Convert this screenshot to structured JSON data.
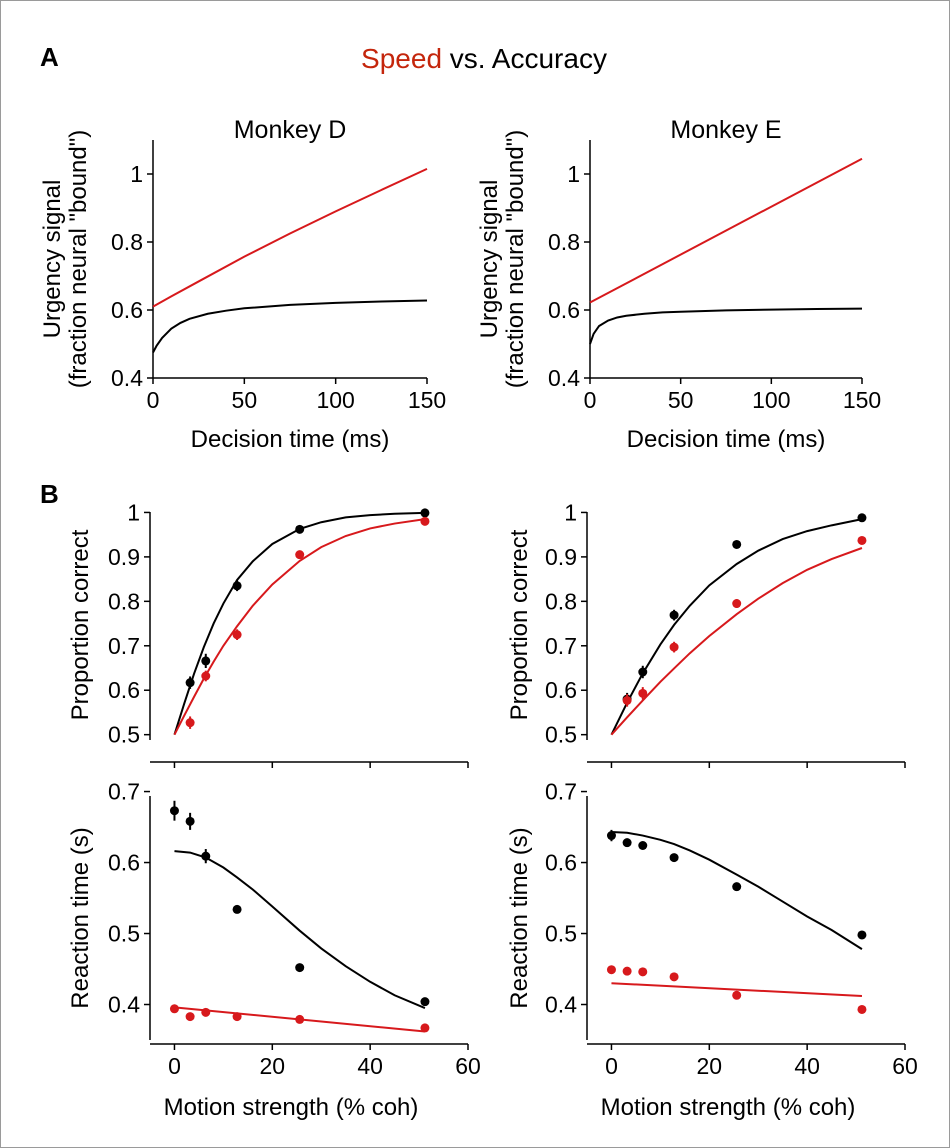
{
  "figure": {
    "panel_a_letter": "A",
    "panel_b_letter": "B",
    "title_speed": "Speed",
    "title_rest": " vs. Accuracy",
    "colors": {
      "speed": "#d7191c",
      "accuracy": "#000000",
      "title_speed": "#c4260c"
    }
  },
  "chart_data": [
    {
      "id": "urgency_D",
      "type": "line",
      "title": "Monkey D",
      "xlabel": "Decision time (ms)",
      "ylabel": [
        "Urgency signal",
        "(fraction neural \"bound\")"
      ],
      "xlim": [
        0,
        150
      ],
      "ylim": [
        0.4,
        1.1
      ],
      "xticks": [
        0,
        50,
        100,
        150
      ],
      "xtick_labels": [
        "0",
        "50",
        "100",
        "150"
      ],
      "yticks": [
        0.4,
        0.6,
        0.8,
        1
      ],
      "ytick_labels": [
        "0.4",
        "0.6",
        "0.8",
        "1"
      ],
      "series": [
        {
          "key": "speed",
          "color": "#d7191c",
          "x": [
            0,
            10,
            25,
            50,
            75,
            100,
            125,
            150
          ],
          "y": [
            0.61,
            0.64,
            0.684,
            0.757,
            0.825,
            0.89,
            0.953,
            1.015
          ]
        },
        {
          "key": "accuracy",
          "color": "#000000",
          "x": [
            0,
            2,
            5,
            10,
            15,
            20,
            30,
            40,
            50,
            75,
            100,
            125,
            150
          ],
          "y": [
            0.475,
            0.495,
            0.518,
            0.545,
            0.562,
            0.574,
            0.589,
            0.598,
            0.605,
            0.615,
            0.621,
            0.625,
            0.628
          ]
        }
      ]
    },
    {
      "id": "urgency_E",
      "type": "line",
      "title": "Monkey E",
      "xlabel": "Decision time (ms)",
      "ylabel": [
        "Urgency signal",
        "(fraction neural \"bound\")"
      ],
      "xlim": [
        0,
        150
      ],
      "ylim": [
        0.4,
        1.1
      ],
      "xticks": [
        0,
        50,
        100,
        150
      ],
      "xtick_labels": [
        "0",
        "50",
        "100",
        "150"
      ],
      "yticks": [
        0.4,
        0.6,
        0.8,
        1
      ],
      "ytick_labels": [
        "0.4",
        "0.6",
        "0.8",
        "1"
      ],
      "series": [
        {
          "key": "speed",
          "color": "#d7191c",
          "x": [
            0,
            150
          ],
          "y": [
            0.622,
            1.045
          ]
        },
        {
          "key": "accuracy",
          "color": "#000000",
          "x": [
            0,
            2,
            5,
            10,
            15,
            20,
            30,
            40,
            50,
            75,
            100,
            125,
            150
          ],
          "y": [
            0.5,
            0.53,
            0.553,
            0.569,
            0.578,
            0.583,
            0.589,
            0.593,
            0.595,
            0.599,
            0.601,
            0.603,
            0.604
          ]
        }
      ]
    },
    {
      "id": "accuracy_D",
      "type": "scatter",
      "xlabel": "",
      "ylabel": [
        "Proportion correct"
      ],
      "xlim": [
        -5,
        60
      ],
      "ylim": [
        0.47,
        1.01
      ],
      "xticks": [
        0,
        20,
        40,
        60
      ],
      "xtick_labels": [],
      "yticks": [
        0.5,
        0.6,
        0.7,
        0.8,
        0.9,
        1
      ],
      "ytick_labels": [
        "0.5",
        "0.6",
        "0.7",
        "0.8",
        "0.9",
        "1"
      ],
      "series": [
        {
          "key": "accuracy",
          "color": "#000000",
          "x": [
            3.2,
            6.4,
            12.8,
            25.6,
            51.2
          ],
          "y": [
            0.617,
            0.666,
            0.835,
            0.962,
            0.999
          ],
          "err": [
            0.014,
            0.016,
            0.012,
            0.006,
            0.003
          ],
          "fit_x": [
            0,
            2,
            4,
            6,
            8,
            10,
            12.8,
            16,
            20,
            25.6,
            30,
            35,
            40,
            45,
            51.2
          ],
          "fit_y": [
            0.5,
            0.57,
            0.637,
            0.697,
            0.75,
            0.795,
            0.848,
            0.89,
            0.929,
            0.963,
            0.978,
            0.989,
            0.994,
            0.997,
            0.999
          ]
        },
        {
          "key": "speed",
          "color": "#d7191c",
          "x": [
            3.2,
            6.4,
            12.8,
            25.6,
            51.2
          ],
          "y": [
            0.527,
            0.632,
            0.725,
            0.905,
            0.98
          ],
          "err": [
            0.014,
            0.012,
            0.012,
            0.008,
            0.003
          ],
          "fit_x": [
            0,
            2,
            4,
            6,
            8,
            10,
            12.8,
            16,
            20,
            25.6,
            30,
            35,
            40,
            45,
            51.2
          ],
          "fit_y": [
            0.5,
            0.543,
            0.585,
            0.626,
            0.664,
            0.7,
            0.744,
            0.79,
            0.838,
            0.891,
            0.922,
            0.947,
            0.964,
            0.975,
            0.985
          ]
        }
      ]
    },
    {
      "id": "accuracy_E",
      "type": "scatter",
      "xlabel": "",
      "ylabel": [
        "Proportion correct"
      ],
      "xlim": [
        -5,
        60
      ],
      "ylim": [
        0.47,
        1.01
      ],
      "xticks": [
        0,
        20,
        40,
        60
      ],
      "xtick_labels": [],
      "yticks": [
        0.5,
        0.6,
        0.7,
        0.8,
        0.9,
        1
      ],
      "ytick_labels": [
        "0.5",
        "0.6",
        "0.7",
        "0.8",
        "0.9",
        "1"
      ],
      "series": [
        {
          "key": "accuracy",
          "color": "#000000",
          "x": [
            3.2,
            6.4,
            12.8,
            25.6,
            51.2
          ],
          "y": [
            0.58,
            0.641,
            0.769,
            0.928,
            0.988
          ],
          "err": [
            0.014,
            0.014,
            0.012,
            0.005,
            0.003
          ],
          "fit_x": [
            0,
            3.2,
            6.4,
            10,
            12.8,
            16,
            20,
            25.6,
            30,
            35,
            40,
            45,
            51.2
          ],
          "fit_y": [
            0.5,
            0.572,
            0.638,
            0.703,
            0.747,
            0.79,
            0.836,
            0.884,
            0.914,
            0.94,
            0.958,
            0.971,
            0.985
          ]
        },
        {
          "key": "speed",
          "color": "#d7191c",
          "x": [
            3.2,
            6.4,
            12.8,
            25.6,
            51.2
          ],
          "y": [
            0.577,
            0.593,
            0.697,
            0.795,
            0.937
          ],
          "err": [
            0.014,
            0.014,
            0.012,
            0.01,
            0.006
          ],
          "fit_x": [
            0,
            3.2,
            6.4,
            10,
            12.8,
            16,
            20,
            25.6,
            30,
            35,
            40,
            45,
            51.2
          ],
          "fit_y": [
            0.5,
            0.539,
            0.577,
            0.619,
            0.649,
            0.683,
            0.722,
            0.771,
            0.806,
            0.841,
            0.871,
            0.895,
            0.92
          ]
        }
      ]
    },
    {
      "id": "rt_D",
      "type": "scatter",
      "xlabel": "Motion strength (% coh)",
      "ylabel": [
        "Reaction time (s)"
      ],
      "xlim": [
        -5,
        60
      ],
      "ylim": [
        0.35,
        0.705
      ],
      "xticks": [
        0,
        20,
        40,
        60
      ],
      "xtick_labels": [
        "0",
        "20",
        "40",
        "60"
      ],
      "yticks": [
        0.4,
        0.5,
        0.6,
        0.7
      ],
      "ytick_labels": [
        "0.4",
        "0.5",
        "0.6",
        "0.7"
      ],
      "series": [
        {
          "key": "accuracy",
          "color": "#000000",
          "x": [
            0,
            3.2,
            6.4,
            12.8,
            25.6,
            51.2
          ],
          "y": [
            0.673,
            0.658,
            0.609,
            0.534,
            0.452,
            0.404
          ],
          "err": [
            0.014,
            0.012,
            0.01,
            0.005,
            0.003,
            0.003
          ],
          "fit_x": [
            0,
            3.2,
            6.4,
            10,
            12.8,
            16,
            20,
            25.6,
            30,
            35,
            40,
            45,
            51.2
          ],
          "fit_y": [
            0.616,
            0.614,
            0.607,
            0.593,
            0.579,
            0.562,
            0.538,
            0.504,
            0.479,
            0.454,
            0.432,
            0.413,
            0.395
          ]
        },
        {
          "key": "speed",
          "color": "#d7191c",
          "x": [
            0,
            3.2,
            6.4,
            12.8,
            25.6,
            51.2
          ],
          "y": [
            0.394,
            0.383,
            0.389,
            0.383,
            0.379,
            0.367
          ],
          "err": [
            0.003,
            0.003,
            0.003,
            0.003,
            0.003,
            0.003
          ],
          "fit_x": [
            0,
            51.2
          ],
          "fit_y": [
            0.396,
            0.362
          ]
        }
      ]
    },
    {
      "id": "rt_E",
      "type": "scatter",
      "xlabel": "Motion strength (% coh)",
      "ylabel": [
        "Reaction time (s)"
      ],
      "xlim": [
        -5,
        60
      ],
      "ylim": [
        0.35,
        0.705
      ],
      "xticks": [
        0,
        20,
        40,
        60
      ],
      "xtick_labels": [
        "0",
        "20",
        "40",
        "60"
      ],
      "yticks": [
        0.4,
        0.5,
        0.6,
        0.7
      ],
      "ytick_labels": [
        "0.4",
        "0.5",
        "0.6",
        "0.7"
      ],
      "series": [
        {
          "key": "accuracy",
          "color": "#000000",
          "x": [
            0,
            3.2,
            6.4,
            12.8,
            25.6,
            51.2
          ],
          "y": [
            0.638,
            0.628,
            0.624,
            0.607,
            0.566,
            0.498
          ],
          "err": [
            0.008,
            0.006,
            0.005,
            0.004,
            0.003,
            0.003
          ],
          "fit_x": [
            0,
            3.2,
            6.4,
            10,
            12.8,
            16,
            20,
            25.6,
            30,
            35,
            40,
            45,
            51.2
          ],
          "fit_y": [
            0.643,
            0.642,
            0.638,
            0.632,
            0.626,
            0.617,
            0.604,
            0.583,
            0.566,
            0.545,
            0.524,
            0.505,
            0.478
          ]
        },
        {
          "key": "speed",
          "color": "#d7191c",
          "x": [
            0,
            3.2,
            6.4,
            12.8,
            25.6,
            51.2
          ],
          "y": [
            0.449,
            0.447,
            0.446,
            0.439,
            0.413,
            0.393
          ],
          "err": [
            0.003,
            0.003,
            0.003,
            0.003,
            0.003,
            0.003
          ],
          "fit_x": [
            0,
            51.2
          ],
          "fit_y": [
            0.43,
            0.412
          ]
        }
      ]
    }
  ]
}
